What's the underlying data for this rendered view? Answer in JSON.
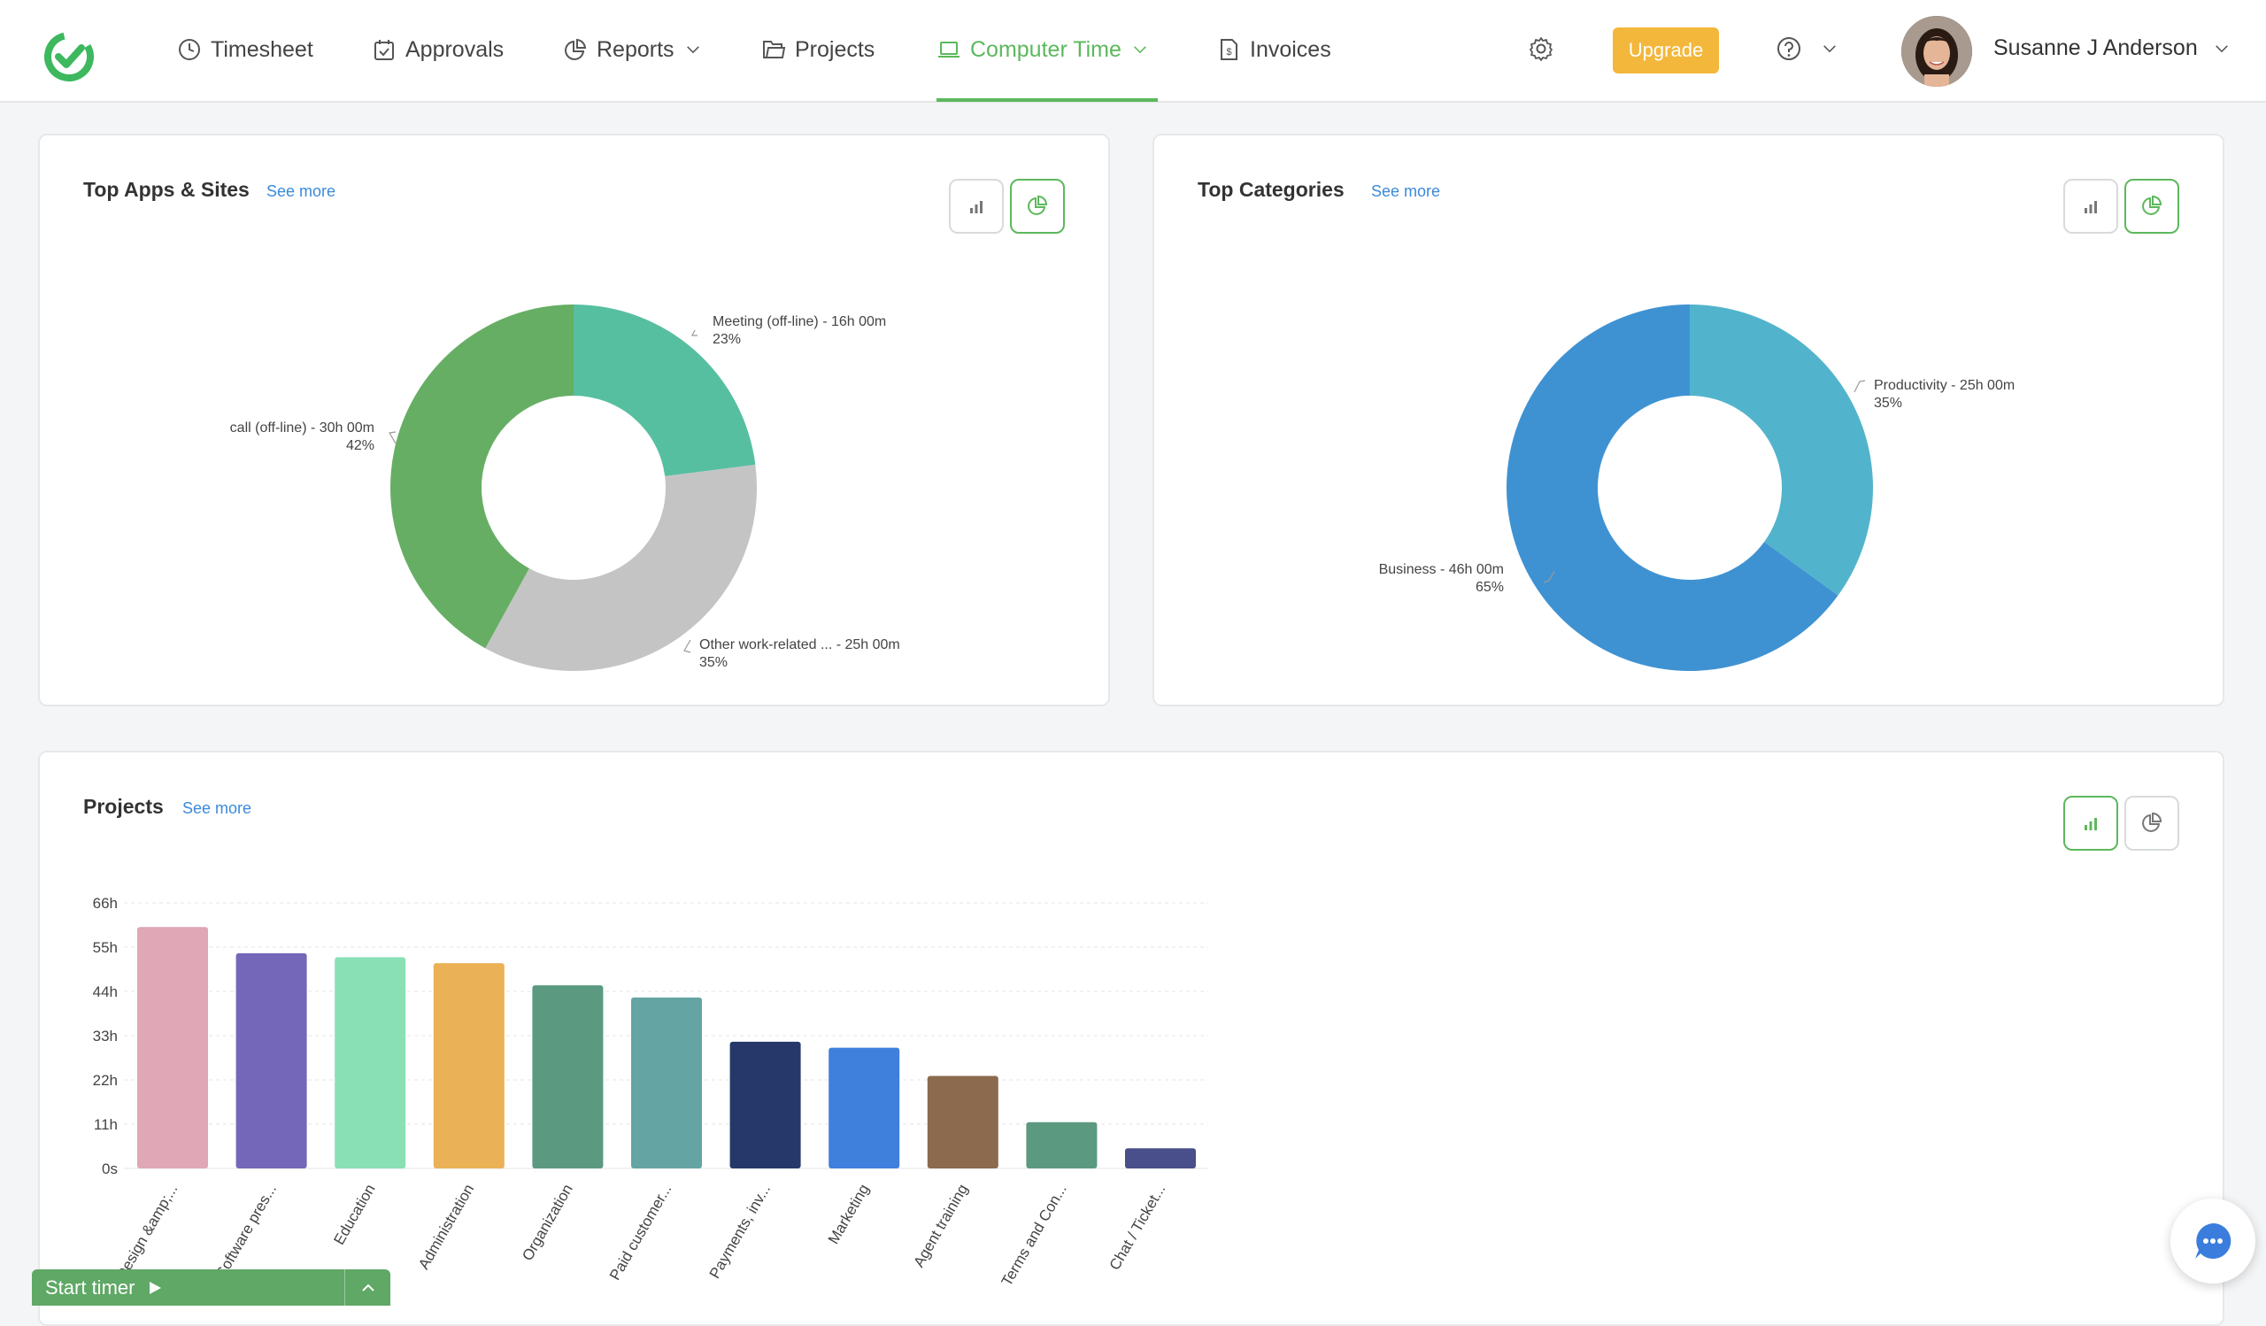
{
  "nav": {
    "items": [
      {
        "label": "Timesheet",
        "icon": "clock-icon"
      },
      {
        "label": "Approvals",
        "icon": "calendar-check-icon"
      },
      {
        "label": "Reports",
        "icon": "pie-chart-icon"
      },
      {
        "label": "Projects",
        "icon": "folder-icon"
      },
      {
        "label": "Computer Time",
        "icon": "laptop-icon"
      },
      {
        "label": "Invoices",
        "icon": "invoice-icon"
      }
    ],
    "active": "Computer Time",
    "upgrade_label": "Upgrade",
    "user_name": "Susanne J Anderson"
  },
  "colors": {
    "accent": "#5cb85c",
    "upgrade": "#f3b73b",
    "link": "#3b8ad9"
  },
  "top_apps": {
    "title": "Top Apps & Sites",
    "see_more": "See more",
    "slices": [
      {
        "label": "Meeting (off-line) - 16h 00m",
        "percent": "23%",
        "value": 23,
        "color": "#56bfa0"
      },
      {
        "label": "Other work-related ... - 25h 00m",
        "percent": "35%",
        "value": 35,
        "color": "#c4c4c4"
      },
      {
        "label": "call (off-line) - 30h 00m",
        "percent": "42%",
        "value": 42,
        "color": "#66ae64"
      }
    ]
  },
  "top_categories": {
    "title": "Top Categories",
    "see_more": "See more",
    "slices": [
      {
        "label": "Productivity - 25h 00m",
        "percent": "35%",
        "value": 35,
        "color": "#52b4cc"
      },
      {
        "label": "Business - 46h 00m",
        "percent": "65%",
        "value": 65,
        "color": "#3f92d2"
      }
    ]
  },
  "projects": {
    "title": "Projects",
    "see_more": "See more"
  },
  "chart_data": {
    "type": "bar",
    "categories": [
      "Design &amp;...",
      "Software pres...",
      "Education",
      "Administration",
      "Organization",
      "Paid customer...",
      "Payments, inv...",
      "Marketing",
      "Agent training",
      "Terms and Con...",
      "Chat / Ticket..."
    ],
    "values": [
      60,
      53.5,
      52.5,
      51,
      45.5,
      42.5,
      31.5,
      30,
      23,
      11.5,
      5
    ],
    "colors": [
      "#e0a7b6",
      "#7467b9",
      "#89e0b4",
      "#eab156",
      "#5b9a80",
      "#64a4a3",
      "#253869",
      "#3f80dc",
      "#8b6a4e",
      "#5b9a80",
      "#484f8a"
    ],
    "y_ticks": [
      "0s",
      "11h",
      "22h",
      "33h",
      "44h",
      "55h",
      "66h"
    ],
    "ylim": [
      0,
      66
    ]
  },
  "timer": {
    "label": "Start timer"
  }
}
